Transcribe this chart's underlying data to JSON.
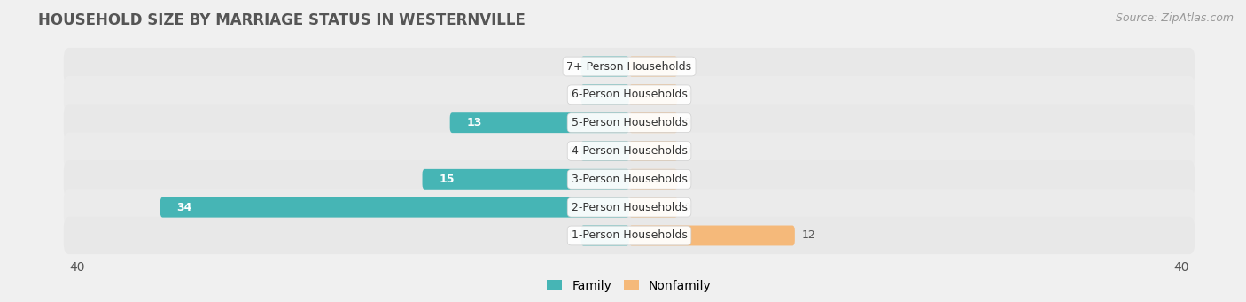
{
  "title": "HOUSEHOLD SIZE BY MARRIAGE STATUS IN WESTERNVILLE",
  "source": "Source: ZipAtlas.com",
  "categories": [
    "7+ Person Households",
    "6-Person Households",
    "5-Person Households",
    "4-Person Households",
    "3-Person Households",
    "2-Person Households",
    "1-Person Households"
  ],
  "family_values": [
    0,
    0,
    13,
    0,
    15,
    34,
    0
  ],
  "nonfamily_values": [
    0,
    0,
    0,
    0,
    0,
    0,
    12
  ],
  "family_color": "#46B5B5",
  "nonfamily_color": "#F5B97A",
  "xlim": [
    -40,
    40
  ],
  "background_color": "#f0f0f0",
  "row_bg_color": "#e2e2e2",
  "row_bg_light": "#ebebeb",
  "title_fontsize": 12,
  "source_fontsize": 9,
  "label_fontsize": 9,
  "value_label_fontsize": 9,
  "legend_labels": [
    "Family",
    "Nonfamily"
  ],
  "zero_stub": 3.5,
  "max_val": 40
}
